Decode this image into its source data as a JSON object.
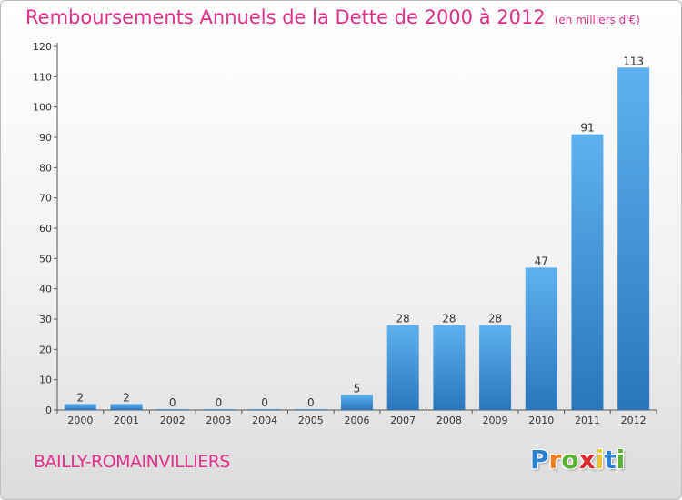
{
  "header": {
    "title": "Remboursements Annuels de la Dette de 2000 à 2012",
    "units": "(en milliers d'€)"
  },
  "footer": {
    "commune": "BAILLY-ROMAINVILLIERS",
    "logo": {
      "letters": [
        "P",
        "r",
        "o",
        "x",
        "i",
        "t",
        "i"
      ],
      "colors": [
        "#2a7fd0",
        "#f07c1e",
        "#5ab031",
        "#e2282b",
        "#f2c12e",
        "#2a7fd0",
        "#5ab031"
      ]
    }
  },
  "chart_data": {
    "type": "bar",
    "title": "Remboursements Annuels de la Dette de 2000 à 2012",
    "xlabel": "",
    "ylabel": "",
    "categories": [
      "2000",
      "2001",
      "2002",
      "2003",
      "2004",
      "2005",
      "2006",
      "2007",
      "2008",
      "2009",
      "2010",
      "2011",
      "2012"
    ],
    "values": [
      2,
      2,
      0,
      0,
      0,
      0,
      5,
      28,
      28,
      28,
      47,
      91,
      113
    ],
    "data_labels": [
      "2",
      "2",
      "0",
      "0",
      "0",
      "0",
      "5",
      "28",
      "28",
      "28",
      "47",
      "91",
      "113"
    ],
    "ylim": [
      0,
      120
    ],
    "yticks": [
      0,
      10,
      20,
      30,
      40,
      50,
      60,
      70,
      80,
      90,
      100,
      110,
      120
    ],
    "grid": false,
    "bar_color": "#3d8fd8"
  }
}
